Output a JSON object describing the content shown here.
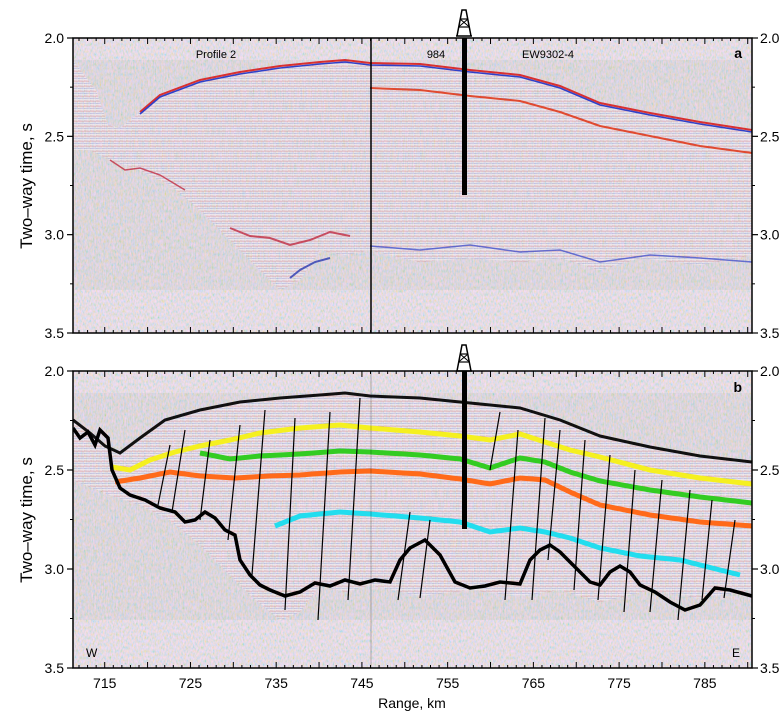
{
  "figure": {
    "y_label": "Two–way time, s",
    "x_label": "Range, km",
    "y_ticks": [
      "2.0",
      "2.5",
      "3.0",
      "3.5"
    ],
    "x_ticks": [
      "715",
      "725",
      "735",
      "745",
      "755",
      "765",
      "775",
      "785"
    ]
  },
  "panel_a": {
    "letter": "a",
    "label_profile": "Profile 2",
    "label_site": "984",
    "label_line": "EW9302-4"
  },
  "panel_b": {
    "letter": "b",
    "label_west": "W",
    "label_east": "E",
    "horizon_colors": [
      "#111111",
      "#f5f020",
      "#33cc22",
      "#ff6a1a",
      "#22ddee",
      "#000000"
    ]
  },
  "colors": {
    "seismic_red": "#d83030",
    "seismic_blue": "#3040c8",
    "seismic_background": "#f7f2f6"
  },
  "icons": [
    "drill-rig-icon"
  ]
}
